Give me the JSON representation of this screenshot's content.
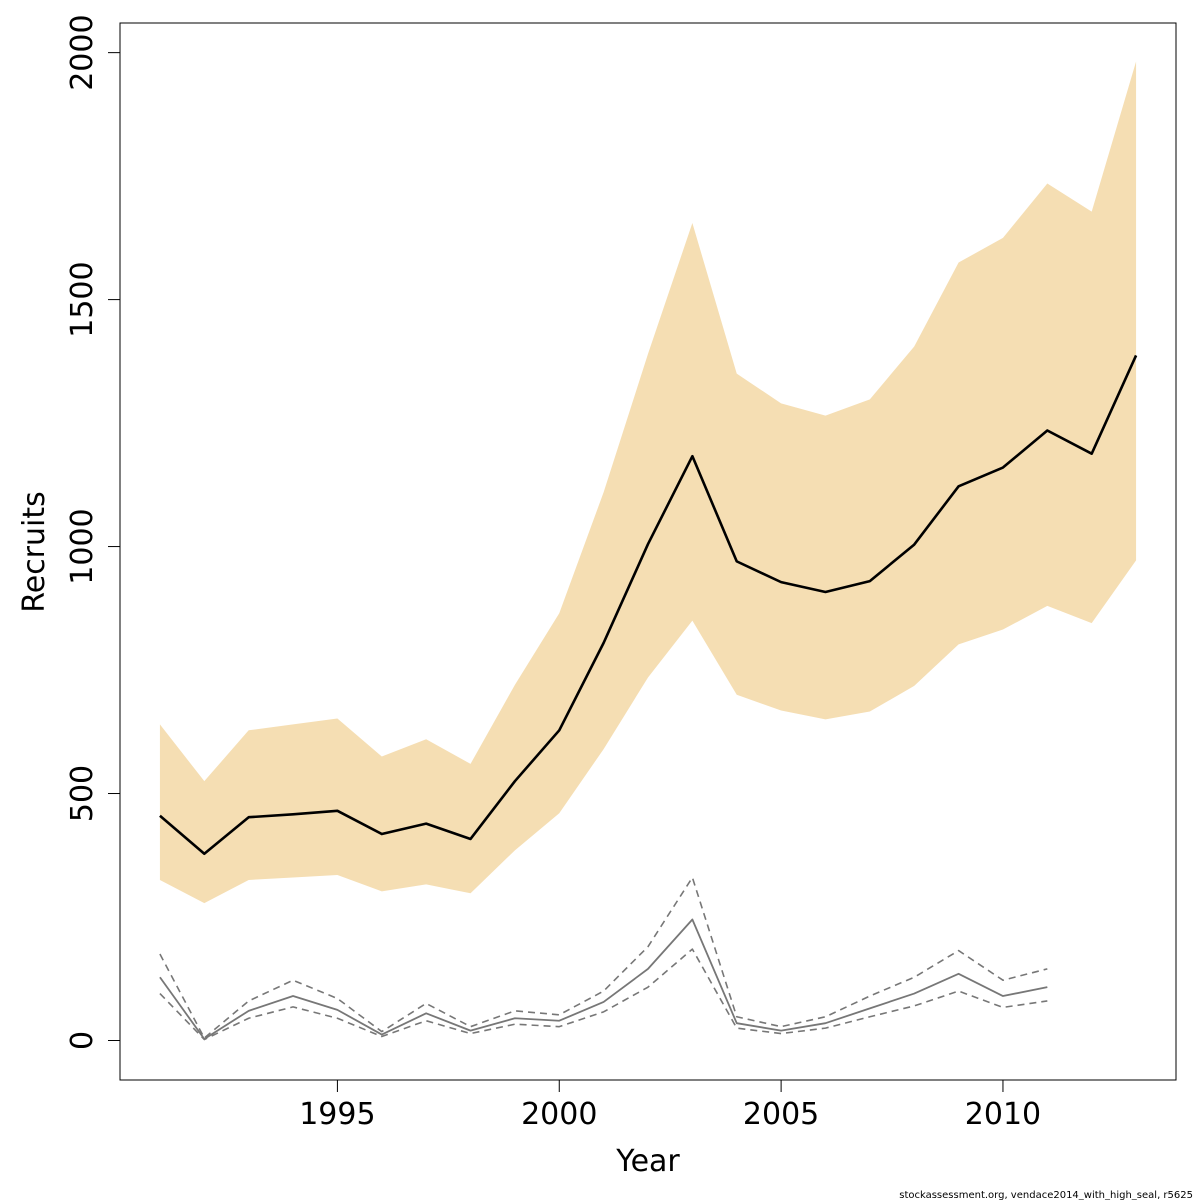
{
  "chart_data": {
    "type": "line",
    "xlabel": "Year",
    "ylabel": "Recruits",
    "xlim": [
      1990.1,
      2013.9
    ],
    "ylim": [
      -80,
      2060
    ],
    "x_ticks": [
      1995,
      2000,
      2005,
      2010
    ],
    "y_ticks": [
      0,
      500,
      1000,
      1500,
      2000
    ],
    "grid": false,
    "legend": "none",
    "colors": {
      "band": "#F5DEB3",
      "main_line": "#000000",
      "secondary_line": "#777777"
    },
    "x": [
      1991,
      1992,
      1993,
      1994,
      1995,
      1996,
      1997,
      1998,
      1999,
      2000,
      2001,
      2002,
      2003,
      2004,
      2005,
      2006,
      2007,
      2008,
      2009,
      2010,
      2011,
      2012,
      2013
    ],
    "series": [
      {
        "role": "band-upper",
        "values": [
          640,
          525,
          628,
          640,
          652,
          575,
          610,
          560,
          720,
          865,
          1110,
          1390,
          1655,
          1350,
          1290,
          1265,
          1298,
          1405,
          1575,
          1625,
          1735,
          1678,
          1982
        ]
      },
      {
        "role": "band-lower",
        "values": [
          325,
          278,
          325,
          330,
          335,
          302,
          316,
          298,
          385,
          460,
          590,
          735,
          850,
          700,
          668,
          650,
          666,
          718,
          802,
          832,
          880,
          845,
          972
        ]
      },
      {
        "role": "estimate",
        "values": [
          455,
          378,
          452,
          458,
          465,
          418,
          439,
          408,
          525,
          628,
          805,
          1005,
          1183,
          970,
          928,
          908,
          930,
          1004,
          1122,
          1160,
          1235,
          1188,
          1387
        ]
      },
      {
        "role": "secondary-mid",
        "x": [
          1991,
          1992,
          1993,
          1994,
          1995,
          1996,
          1997,
          1998,
          1999,
          2000,
          2001,
          2002,
          2003,
          2004,
          2005,
          2006,
          2007,
          2008,
          2009,
          2010,
          2011
        ],
        "values": [
          128,
          3,
          60,
          90,
          62,
          12,
          55,
          20,
          45,
          40,
          78,
          145,
          245,
          35,
          20,
          35,
          65,
          95,
          135,
          90,
          108
        ]
      },
      {
        "role": "secondary-upper",
        "x": [
          1991,
          1992,
          1993,
          1994,
          1995,
          1996,
          1997,
          1998,
          1999,
          2000,
          2001,
          2002,
          2003,
          2004,
          2005,
          2006,
          2007,
          2008,
          2009,
          2010,
          2011
        ],
        "values": [
          175,
          5,
          80,
          122,
          85,
          18,
          75,
          28,
          60,
          52,
          100,
          190,
          330,
          48,
          28,
          48,
          90,
          128,
          182,
          122,
          145
        ]
      },
      {
        "role": "secondary-lower",
        "x": [
          1991,
          1992,
          1993,
          1994,
          1995,
          1996,
          1997,
          1998,
          1999,
          2000,
          2001,
          2002,
          2003,
          2004,
          2005,
          2006,
          2007,
          2008,
          2009,
          2010,
          2011
        ],
        "values": [
          95,
          2,
          45,
          68,
          45,
          8,
          40,
          14,
          33,
          28,
          58,
          108,
          185,
          25,
          14,
          25,
          48,
          70,
          100,
          67,
          80
        ]
      }
    ]
  },
  "footnote": "stockassessment.org, vendace2014_with_high_seal, r5625"
}
